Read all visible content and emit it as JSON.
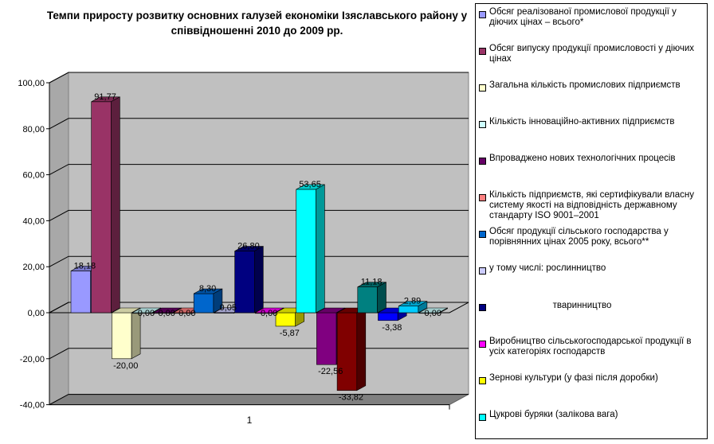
{
  "chart_data": {
    "type": "bar",
    "style": "3d-clustered-column",
    "title": "Темпи приросту розвитку основних галузей економіки  Ізяславського району у співвідношенні 2010 до 2009 рр.",
    "categories": [
      "1"
    ],
    "ylim": [
      -40,
      100
    ],
    "yticks": [
      "100,00",
      "80,00",
      "60,00",
      "40,00",
      "20,00",
      "0,00",
      "-20,00",
      "-40,00"
    ],
    "grid": true,
    "legend_position": "right",
    "series": [
      {
        "name": "Обсяг реалізованої промислової продукції у діючих цінах – всього*",
        "value": 18.18,
        "label": "18,18",
        "color": "#9999ff"
      },
      {
        "name": "Обсяг випуску продукції промисловості у діючих цінах",
        "value": 91.77,
        "label": "91,77",
        "color": "#993366"
      },
      {
        "name": "Загальна кількість промислових підприємств",
        "value": -20.0,
        "label": "-20,00",
        "color": "#ffffcc"
      },
      {
        "name": "Кількість інноваційно-активних підприємств",
        "value": 0.0,
        "label": "0,00",
        "color": "#ccffff"
      },
      {
        "name": "Впроваджено нових технологічних процесів",
        "value": 0.0,
        "label": "0,00",
        "color": "#660066"
      },
      {
        "name": "Кількість підприємств, які сертифікували власну систему якості на відповідність державному стандарту ISO 9001–2001",
        "value": 0.0,
        "label": "0,00",
        "color": "#ff8080"
      },
      {
        "name": "Обсяг продукції сільського господарства у порівнянних цінах 2005 року, всього**",
        "value": 8.3,
        "label": "8,30",
        "color": "#0066cc"
      },
      {
        "name": "у тому числі: рослинництво",
        "value": 0.05,
        "label": "0,05",
        "color": "#ccccff"
      },
      {
        "name": "тваринництво",
        "value": 26.8,
        "label": "26,80",
        "color": "#000080"
      },
      {
        "name": "Виробництво сільськогосподарської продукції в усіх категоріях господарств",
        "value": 0.0,
        "label": "0,00",
        "color": "#ff00ff"
      },
      {
        "name": "Зернові культури (у фазі після доробки)",
        "value": -5.87,
        "label": "-5,87",
        "color": "#ffff00"
      },
      {
        "name": "Цукрові буряки (залікова вага)",
        "value": 53.65,
        "label": "53,65",
        "color": "#00ffff"
      },
      {
        "name": "",
        "value": -22.56,
        "label": "-22,56",
        "color": "#800080"
      },
      {
        "name": "",
        "value": -33.82,
        "label": "-33,82",
        "color": "#800000"
      },
      {
        "name": "",
        "value": 11.18,
        "label": "11,18",
        "color": "#008080"
      },
      {
        "name": "",
        "value": -3.38,
        "label": "-3,38",
        "color": "#0000ff"
      },
      {
        "name": "",
        "value": 2.89,
        "label": "2,89",
        "color": "#00ccff"
      },
      {
        "name": "",
        "value": 0.0,
        "label": "0,00",
        "color": "#ccffff"
      }
    ]
  }
}
